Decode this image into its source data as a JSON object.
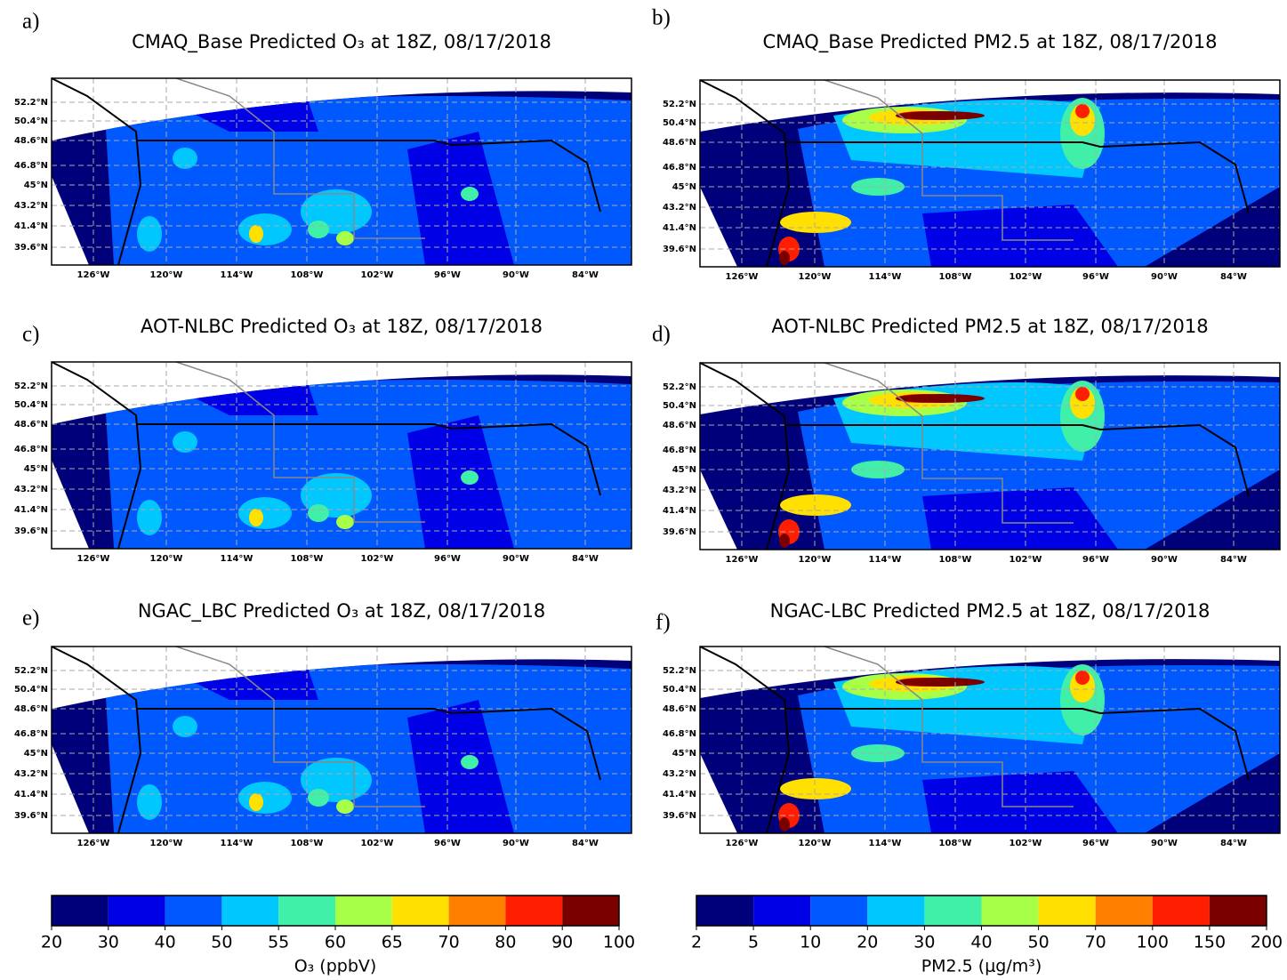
{
  "panels": [
    {
      "letter": "a)",
      "title": "CMAQ_Base Predicted O₃ at 18Z, 08/17/2018"
    },
    {
      "letter": "b)",
      "title": "CMAQ_Base Predicted PM2.5 at 18Z, 08/17/2018"
    },
    {
      "letter": "c)",
      "title": "AOT-NLBC Predicted O₃ at 18Z, 08/17/2018"
    },
    {
      "letter": "d)",
      "title": "AOT-NLBC Predicted PM2.5 at 18Z, 08/17/2018"
    },
    {
      "letter": "e)",
      "title": "NGAC_LBC Predicted O₃ at 18Z, 08/17/2018"
    },
    {
      "letter": "f)",
      "title": "NGAC-LBC Predicted PM2.5 at 18Z, 08/17/2018"
    }
  ],
  "map_axes": {
    "lat_ticks": [
      "52.2°N",
      "50.4°N",
      "48.6°N",
      "46.8°N",
      "45°N",
      "43.2°N",
      "41.4°N",
      "39.6°N"
    ],
    "lon_ticks": [
      "126°W",
      "120°W",
      "114°W",
      "108°W",
      "102°W",
      "96°W",
      "90°W",
      "84°W"
    ]
  },
  "colorbars": [
    {
      "label": "O₃ (ppbV)",
      "levels": [
        20,
        30,
        40,
        50,
        55,
        60,
        65,
        70,
        80,
        90,
        100
      ],
      "colors": [
        "#00007a",
        "#0000e6",
        "#0058ff",
        "#00c8ff",
        "#40f0a8",
        "#a8ff48",
        "#ffe000",
        "#ff8000",
        "#ff1e00",
        "#7a0000"
      ]
    },
    {
      "label": "PM2.5 (μg/m³)",
      "levels": [
        2,
        5,
        10,
        20,
        30,
        40,
        50,
        70,
        100,
        150,
        200
      ],
      "colors": [
        "#00007a",
        "#0000e6",
        "#0058ff",
        "#00c8ff",
        "#40f0a8",
        "#a8ff48",
        "#ffe000",
        "#ff8000",
        "#ff1e00",
        "#7a0000"
      ]
    }
  ]
}
